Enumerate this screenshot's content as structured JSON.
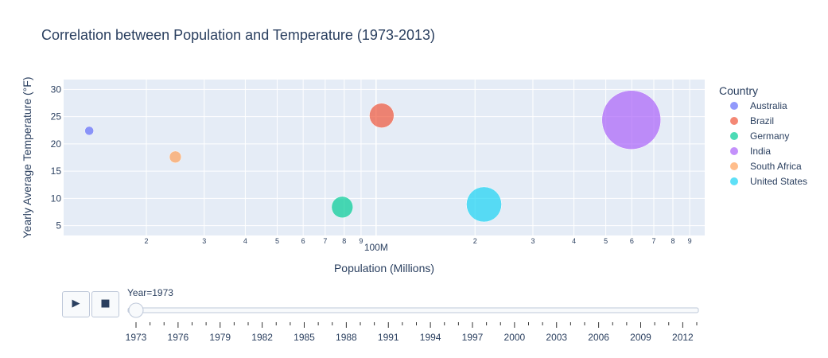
{
  "chart_data": {
    "type": "scatter",
    "title": "Correlation between Population and Temperature (1973-2013)",
    "xlabel": "Population (Millions)",
    "ylabel": "Yearly Average Temperature (°F)",
    "x_scale": "log",
    "xlim": [
      11200000,
      1000000000
    ],
    "ylim": [
      3.2,
      31.8
    ],
    "y_ticks": [
      5,
      10,
      15,
      20,
      25,
      30
    ],
    "x_ticks": [
      {
        "value": 20000000,
        "label": "2"
      },
      {
        "value": 30000000,
        "label": "3"
      },
      {
        "value": 40000000,
        "label": "4"
      },
      {
        "value": 50000000,
        "label": "5"
      },
      {
        "value": 60000000,
        "label": "6"
      },
      {
        "value": 70000000,
        "label": "7"
      },
      {
        "value": 80000000,
        "label": "8"
      },
      {
        "value": 90000000,
        "label": "9"
      },
      {
        "value": 100000000,
        "label": "100M"
      },
      {
        "value": 200000000,
        "label": "2"
      },
      {
        "value": 300000000,
        "label": "3"
      },
      {
        "value": 400000000,
        "label": "4"
      },
      {
        "value": 500000000,
        "label": "5"
      },
      {
        "value": 600000000,
        "label": "6"
      },
      {
        "value": 700000000,
        "label": "7"
      },
      {
        "value": 800000000,
        "label": "8"
      },
      {
        "value": 900000000,
        "label": "9"
      }
    ],
    "grid": true,
    "legend_title": "Country",
    "legend_position": "right",
    "series": [
      {
        "name": "Australia",
        "color": "#636efa",
        "x": 13400000,
        "y": 22.4,
        "size": 13400000
      },
      {
        "name": "Brazil",
        "color": "#ef553b",
        "x": 104000000,
        "y": 25.2,
        "size": 104000000
      },
      {
        "name": "Germany",
        "color": "#00cc96",
        "x": 78900000,
        "y": 8.4,
        "size": 78900000
      },
      {
        "name": "India",
        "color": "#ab63fa",
        "x": 598000000,
        "y": 24.4,
        "size": 598000000
      },
      {
        "name": "South Africa",
        "color": "#ffa15a",
        "x": 24500000,
        "y": 17.6,
        "size": 24500000
      },
      {
        "name": "United States",
        "color": "#19d3f3",
        "x": 213000000,
        "y": 8.9,
        "size": 213000000
      }
    ]
  },
  "slider": {
    "current_label": "Year=1973",
    "current_value": 1973,
    "start": 1973,
    "end": 2013,
    "labels": [
      "1973",
      "1976",
      "1979",
      "1982",
      "1985",
      "1988",
      "1991",
      "1994",
      "1997",
      "2000",
      "2003",
      "2006",
      "2009",
      "2012"
    ]
  },
  "controls": {
    "play_icon": "play-icon",
    "stop_icon": "stop-icon",
    "play_glyph": "▶",
    "stop_glyph": "■"
  }
}
